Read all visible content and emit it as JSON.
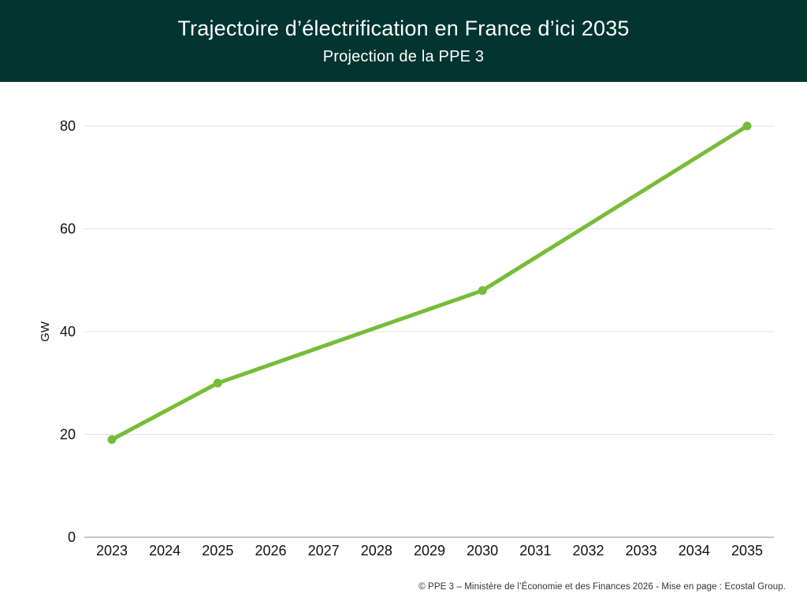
{
  "header": {
    "title": "Trajectoire d’électrification en France d’ici 2035",
    "subtitle": "Projection de la PPE 3",
    "background_color": "#023530",
    "text_color": "#ffffff"
  },
  "chart_data": {
    "type": "line",
    "title": "Trajectoire d’électrification en France d’ici 2035",
    "subtitle": "Projection de la PPE 3",
    "xlabel": "",
    "ylabel": "GW",
    "x_ticks": [
      2023,
      2024,
      2025,
      2026,
      2027,
      2028,
      2029,
      2030,
      2031,
      2032,
      2033,
      2034,
      2035
    ],
    "y_ticks": [
      0,
      20,
      40,
      60,
      80
    ],
    "xlim": [
      2023,
      2035
    ],
    "ylim": [
      0,
      80
    ],
    "grid": "horizontal",
    "legend": "none",
    "series": [
      {
        "color": "#75BD37",
        "points": [
          {
            "x": 2023,
            "y": 19
          },
          {
            "x": 2025,
            "y": 30
          },
          {
            "x": 2030,
            "y": 48
          },
          {
            "x": 2035,
            "y": 80
          }
        ]
      }
    ],
    "style": {
      "gridline_color": "#e2e2e2",
      "axis_line_color": "#b3b3b3",
      "tick_label_color": "#111111",
      "line_width": 5,
      "marker_radius": 5.5
    }
  },
  "footer": {
    "credit": "© PPE 3 – Ministère de l’Économie et des Finances 2026 - Mise en page : Ecostal Group."
  }
}
